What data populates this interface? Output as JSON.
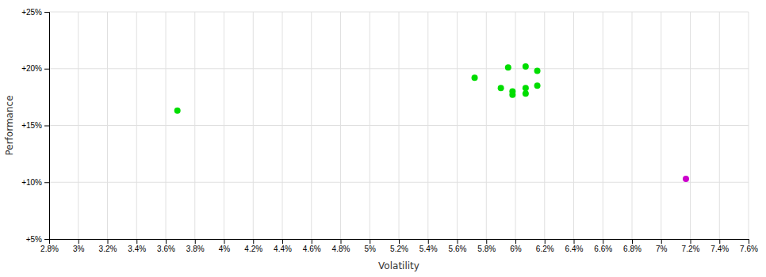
{
  "chart_data": {
    "type": "scatter",
    "xlabel": "Volatility",
    "ylabel": "Performance",
    "xlim": [
      0.028,
      0.076
    ],
    "ylim": [
      0.05,
      0.25
    ],
    "xticks": [
      {
        "value": 0.028,
        "label": "2.8%"
      },
      {
        "value": 0.03,
        "label": "3%"
      },
      {
        "value": 0.032,
        "label": "3.2%"
      },
      {
        "value": 0.034,
        "label": "3.4%"
      },
      {
        "value": 0.036,
        "label": "3.6%"
      },
      {
        "value": 0.038,
        "label": "3.8%"
      },
      {
        "value": 0.04,
        "label": "4%"
      },
      {
        "value": 0.042,
        "label": "4.2%"
      },
      {
        "value": 0.044,
        "label": "4.4%"
      },
      {
        "value": 0.046,
        "label": "4.6%"
      },
      {
        "value": 0.048,
        "label": "4.8%"
      },
      {
        "value": 0.05,
        "label": "5%"
      },
      {
        "value": 0.052,
        "label": "5.2%"
      },
      {
        "value": 0.054,
        "label": "5.4%"
      },
      {
        "value": 0.056,
        "label": "5.6%"
      },
      {
        "value": 0.058,
        "label": "5.8%"
      },
      {
        "value": 0.06,
        "label": "6%"
      },
      {
        "value": 0.062,
        "label": "6.2%"
      },
      {
        "value": 0.064,
        "label": "6.4%"
      },
      {
        "value": 0.066,
        "label": "6.6%"
      },
      {
        "value": 0.068,
        "label": "6.8%"
      },
      {
        "value": 0.07,
        "label": "7%"
      },
      {
        "value": 0.072,
        "label": "7.2%"
      },
      {
        "value": 0.074,
        "label": "7.4%"
      },
      {
        "value": 0.076,
        "label": "7.6%"
      }
    ],
    "yticks": [
      {
        "value": 0.05,
        "label": "+5%"
      },
      {
        "value": 0.1,
        "label": "+10%"
      },
      {
        "value": 0.15,
        "label": "+15%"
      },
      {
        "value": 0.2,
        "label": "+20%"
      },
      {
        "value": 0.25,
        "label": "+25%"
      }
    ],
    "grid": true,
    "series": [
      {
        "color": "#00dd00",
        "x": [
          0.0368,
          0.0572,
          0.0595,
          0.0607,
          0.0615,
          0.059,
          0.0598,
          0.0607,
          0.0615,
          0.0598,
          0.0607
        ],
        "values": [
          0.163,
          0.192,
          0.201,
          0.202,
          0.198,
          0.183,
          0.18,
          0.183,
          0.185,
          0.177,
          0.178
        ]
      },
      {
        "color": "#cc00cc",
        "x": [
          0.0717
        ],
        "values": [
          0.103
        ]
      }
    ]
  }
}
